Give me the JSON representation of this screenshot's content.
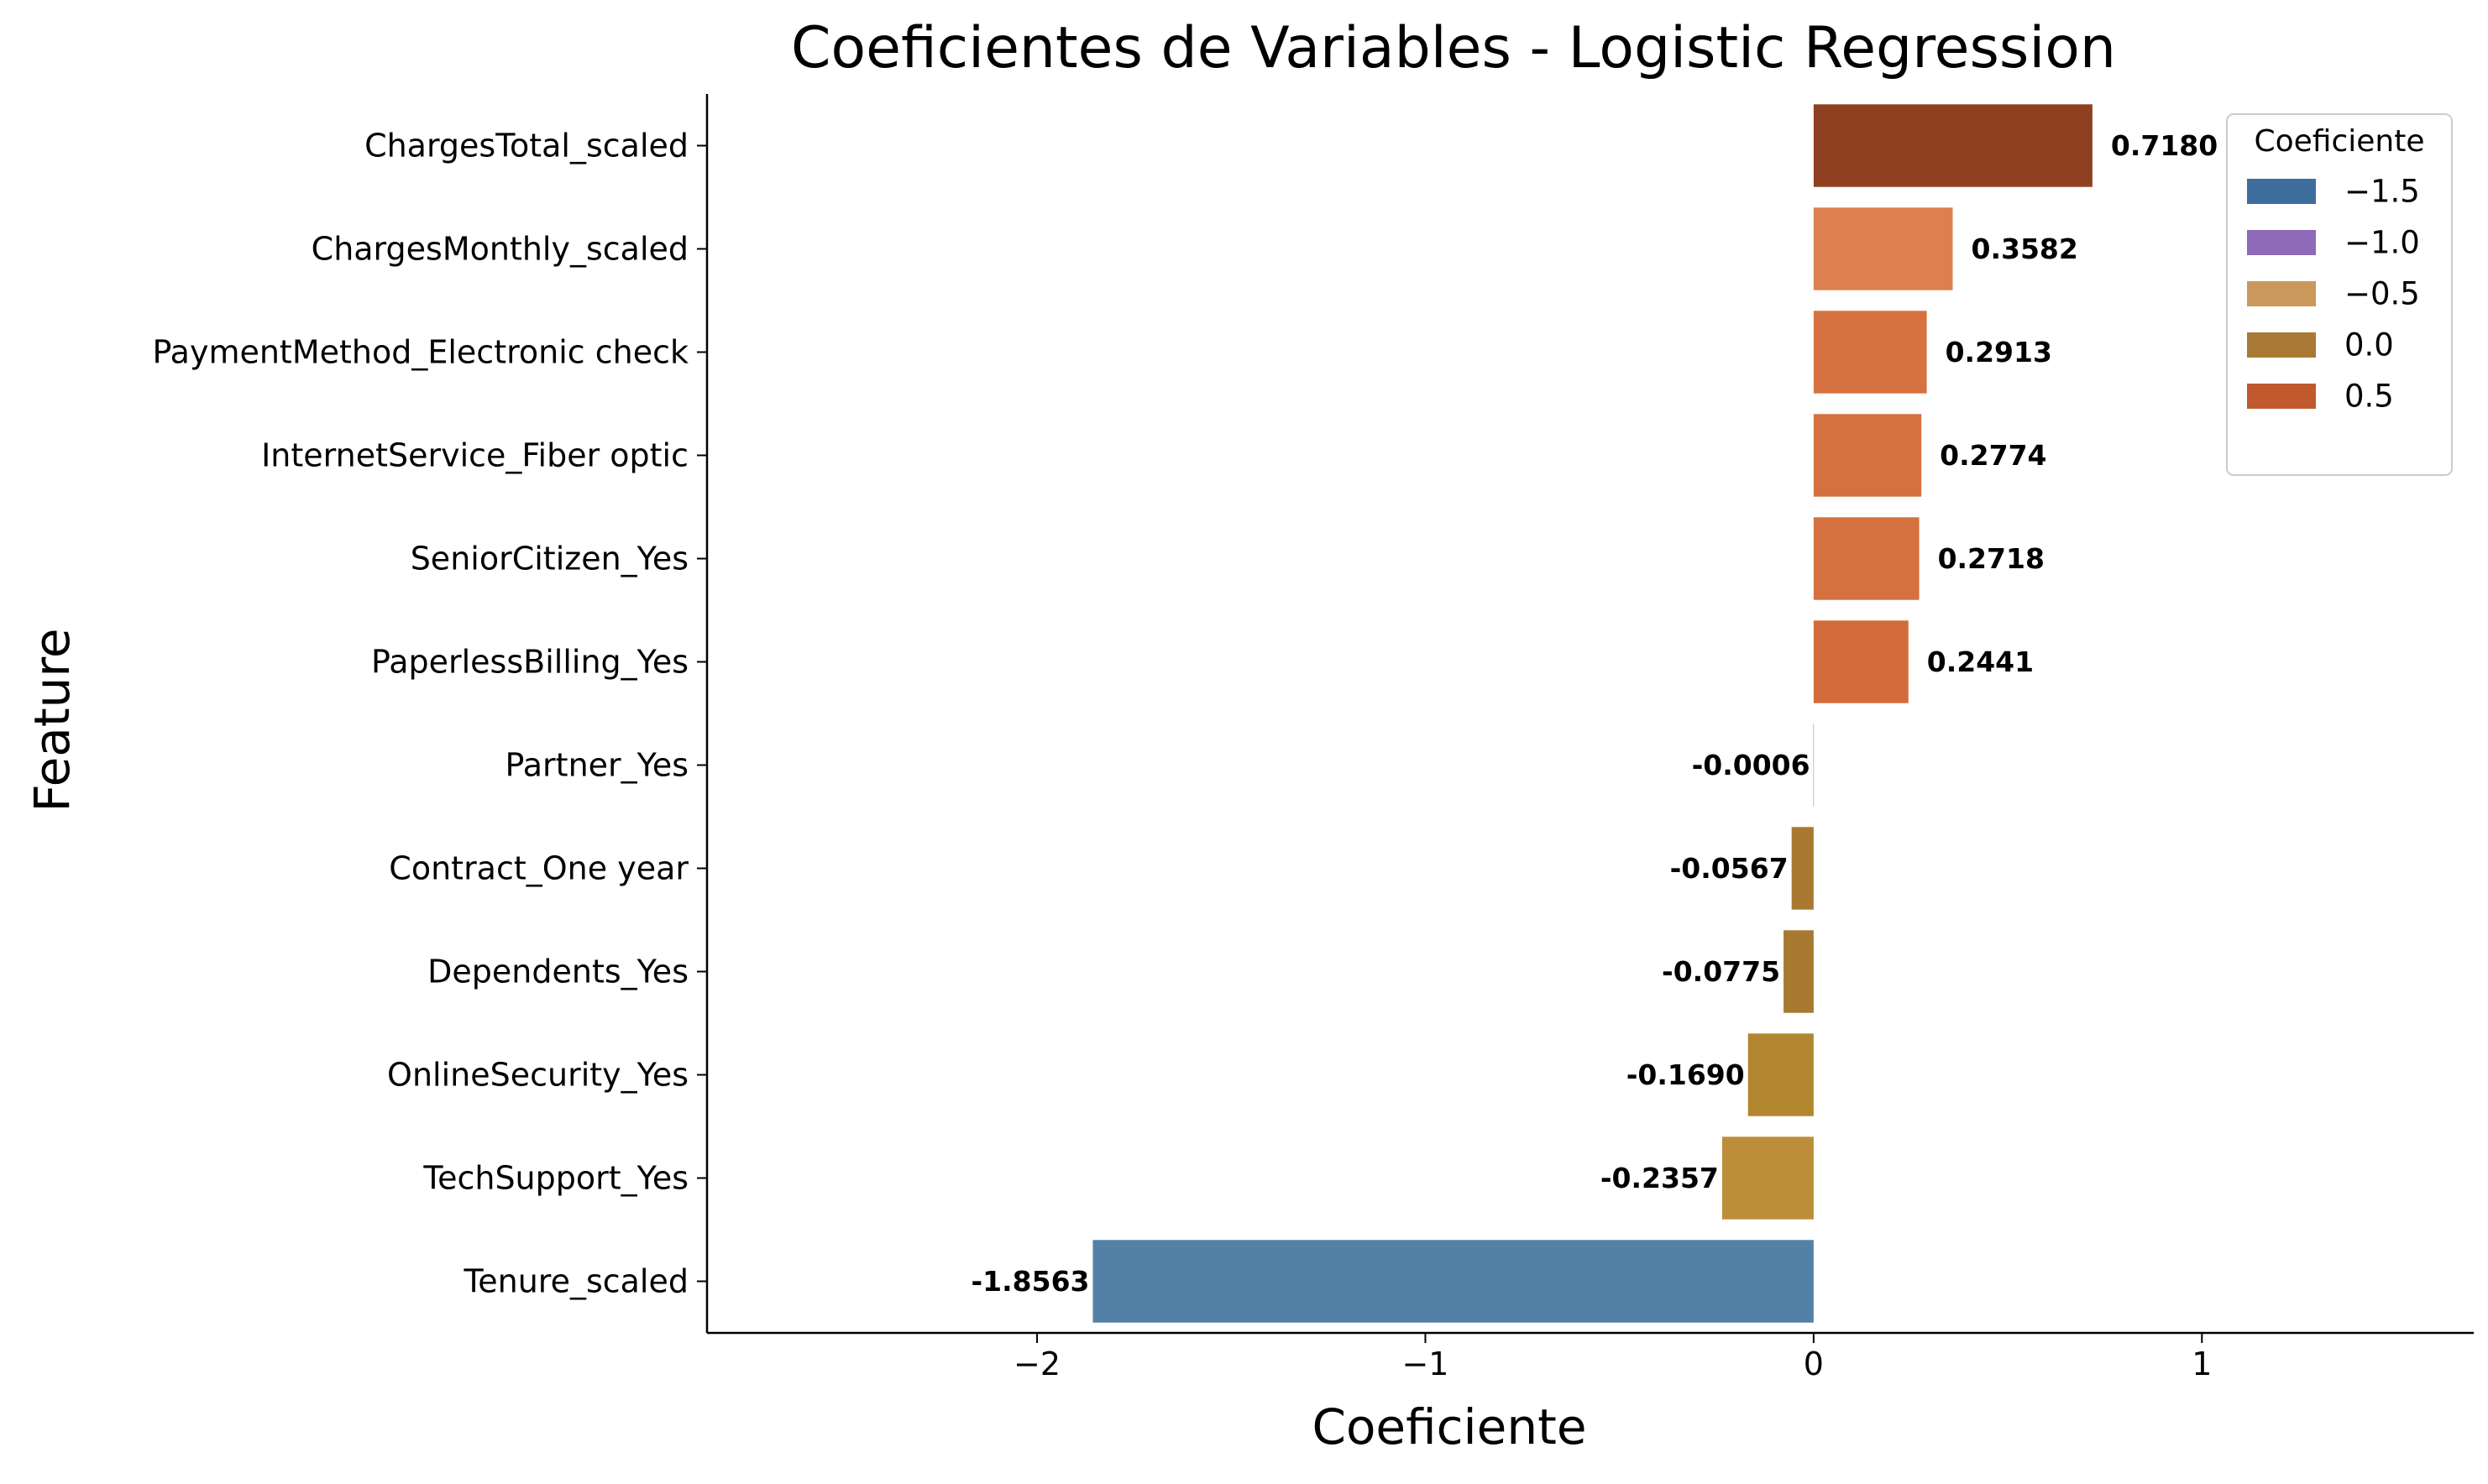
{
  "chart_data": {
    "type": "bar",
    "orientation": "horizontal",
    "title": "Coeficientes de Variables - Logistic Regression",
    "xlabel": "Coeficiente",
    "ylabel": "Feature",
    "xlim": [
      -2.85,
      1.7
    ],
    "xticks": [
      -2,
      -1,
      0,
      1
    ],
    "xtick_labels": [
      "−2",
      "−1",
      "0",
      "1"
    ],
    "categories": [
      "ChargesTotal_scaled",
      "ChargesMonthly_scaled",
      "PaymentMethod_Electronic check",
      "InternetService_Fiber optic",
      "SeniorCitizen_Yes",
      "PaperlessBilling_Yes",
      "Partner_Yes",
      "Contract_One year",
      "Dependents_Yes",
      "OnlineSecurity_Yes",
      "TechSupport_Yes",
      "Tenure_scaled"
    ],
    "values": [
      0.718,
      0.3582,
      0.2913,
      0.2774,
      0.2718,
      0.2441,
      -0.0006,
      -0.0567,
      -0.0775,
      -0.169,
      -0.2357,
      -1.8563
    ],
    "value_labels": [
      "0.7180",
      "0.3582",
      "0.2913",
      "0.2774",
      "0.2718",
      "0.2441",
      "-0.0006",
      "-0.0567",
      "-0.0775",
      "-0.1690",
      "-0.2357",
      "-1.8563"
    ],
    "bar_colors": [
      "#8f4021",
      "#dc8050",
      "#d6723f",
      "#d4713f",
      "#d4713f",
      "#d36c3a",
      "#a77a35",
      "#a97932",
      "#a87930",
      "#b2862f",
      "#bc8e3a",
      "#5380a6"
    ],
    "grid": false,
    "legend": {
      "title": "Coeficiente",
      "placement": "top-right",
      "entries": [
        {
          "label": "−1.5",
          "color": "#3e6e9e"
        },
        {
          "label": "−1.0",
          "color": "#8f6ab8"
        },
        {
          "label": "−0.5",
          "color": "#c9985a"
        },
        {
          "label": "0.0",
          "color": "#a97a35"
        },
        {
          "label": "0.5",
          "color": "#c05a2e"
        }
      ]
    }
  }
}
